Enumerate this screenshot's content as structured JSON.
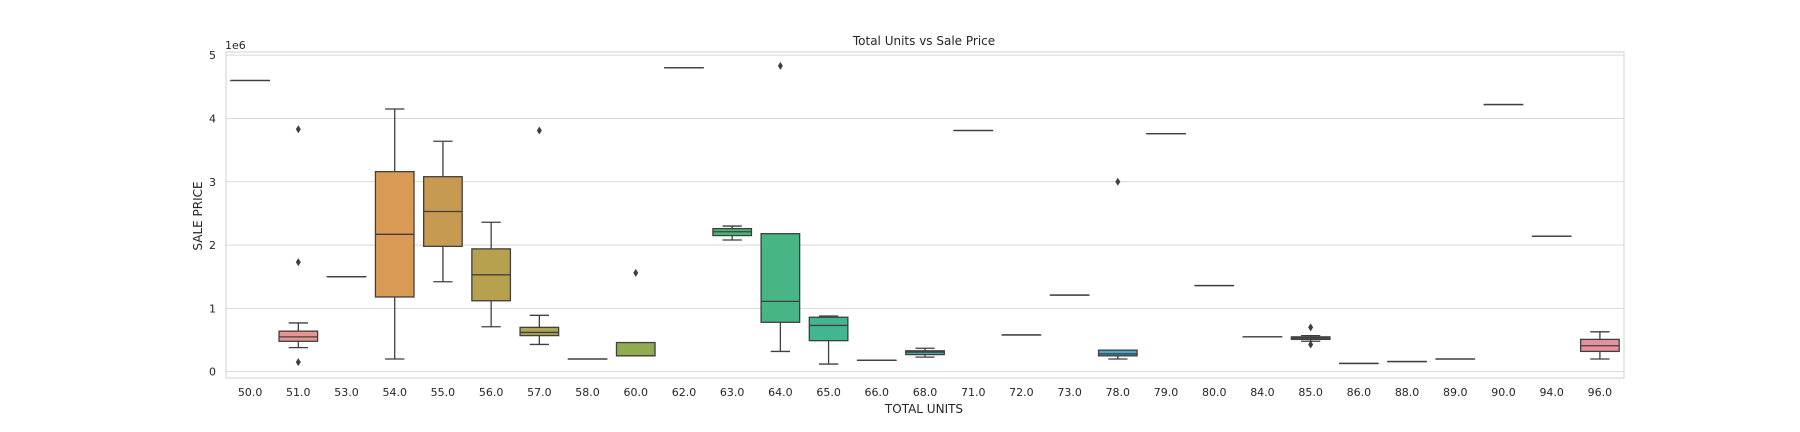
{
  "chart_data": {
    "type": "box",
    "title": "Total Units vs Sale Price",
    "xlabel": "TOTAL UNITS",
    "ylabel": "SALE PRICE",
    "y_offset_label": "1e6",
    "ylim": [
      -0.1,
      5.05
    ],
    "yticks": [
      0,
      1,
      2,
      3,
      4,
      5
    ],
    "ytick_labels": [
      "0",
      "1",
      "2",
      "3",
      "4",
      "5"
    ],
    "grid": true,
    "categories": [
      "50.0",
      "51.0",
      "53.0",
      "54.0",
      "55.0",
      "56.0",
      "57.0",
      "58.0",
      "60.0",
      "62.0",
      "63.0",
      "64.0",
      "65.0",
      "66.0",
      "68.0",
      "71.0",
      "72.0",
      "73.0",
      "78.0",
      "79.0",
      "80.0",
      "84.0",
      "85.0",
      "86.0",
      "88.0",
      "89.0",
      "90.0",
      "94.0",
      "96.0"
    ],
    "colors": [
      "#e8949a",
      "#e69590",
      "#e19b6e",
      "#d99a56",
      "#c69a50",
      "#b7a04e",
      "#aea751",
      "#a5aa54",
      "#8fac50",
      "#4fb461",
      "#49b67a",
      "#48b585",
      "#43b592",
      "#3fb49b",
      "#3cb4a4",
      "#3db2ae",
      "#3eb1b8",
      "#3fb0c3",
      "#45a9cf",
      "#5a9fd8",
      "#7a96e0",
      "#9a8de3",
      "#b287e4",
      "#c883e2",
      "#d880d4",
      "#e07fc6",
      "#e582b8",
      "#e88aa8",
      "#e8909b"
    ],
    "boxes": [
      {
        "q1": 4.6,
        "med": 4.6,
        "q3": 4.6,
        "wlo": 4.6,
        "whi": 4.6,
        "fliers": []
      },
      {
        "q1": 0.48,
        "med": 0.55,
        "q3": 0.64,
        "wlo": 0.38,
        "whi": 0.77,
        "fliers": [
          3.83,
          1.73,
          0.15
        ]
      },
      {
        "q1": 1.5,
        "med": 1.5,
        "q3": 1.5,
        "wlo": 1.5,
        "whi": 1.5,
        "fliers": []
      },
      {
        "q1": 1.18,
        "med": 2.17,
        "q3": 3.16,
        "wlo": 0.2,
        "whi": 4.15,
        "fliers": []
      },
      {
        "q1": 1.98,
        "med": 2.53,
        "q3": 3.08,
        "wlo": 1.42,
        "whi": 3.64,
        "fliers": []
      },
      {
        "q1": 1.12,
        "med": 1.53,
        "q3": 1.94,
        "wlo": 0.71,
        "whi": 2.36,
        "fliers": []
      },
      {
        "q1": 0.57,
        "med": 0.62,
        "q3": 0.7,
        "wlo": 0.43,
        "whi": 0.89,
        "fliers": [
          3.81
        ]
      },
      {
        "q1": 0.2,
        "med": 0.2,
        "q3": 0.2,
        "wlo": 0.2,
        "whi": 0.2,
        "fliers": []
      },
      {
        "q1": 0.25,
        "med": 0.25,
        "q3": 0.46,
        "wlo": 0.25,
        "whi": 0.46,
        "fliers": [
          1.56
        ]
      },
      {
        "q1": 4.8,
        "med": 4.8,
        "q3": 4.8,
        "wlo": 4.8,
        "whi": 4.8,
        "fliers": []
      },
      {
        "q1": 2.15,
        "med": 2.21,
        "q3": 2.26,
        "wlo": 2.08,
        "whi": 2.3,
        "fliers": []
      },
      {
        "q1": 0.78,
        "med": 1.11,
        "q3": 2.18,
        "wlo": 0.32,
        "whi": 2.18,
        "fliers": [
          4.83
        ]
      },
      {
        "q1": 0.49,
        "med": 0.73,
        "q3": 0.86,
        "wlo": 0.12,
        "whi": 0.88,
        "fliers": []
      },
      {
        "q1": 0.18,
        "med": 0.18,
        "q3": 0.18,
        "wlo": 0.18,
        "whi": 0.18,
        "fliers": []
      },
      {
        "q1": 0.27,
        "med": 0.31,
        "q3": 0.33,
        "wlo": 0.23,
        "whi": 0.37,
        "fliers": []
      },
      {
        "q1": 3.81,
        "med": 3.81,
        "q3": 3.81,
        "wlo": 3.81,
        "whi": 3.81,
        "fliers": []
      },
      {
        "q1": 0.58,
        "med": 0.58,
        "q3": 0.58,
        "wlo": 0.58,
        "whi": 0.58,
        "fliers": []
      },
      {
        "q1": 1.21,
        "med": 1.21,
        "q3": 1.21,
        "wlo": 1.21,
        "whi": 1.21,
        "fliers": []
      },
      {
        "q1": 0.25,
        "med": 0.28,
        "q3": 0.34,
        "wlo": 0.2,
        "whi": 0.34,
        "fliers": [
          3.0
        ]
      },
      {
        "q1": 3.76,
        "med": 3.76,
        "q3": 3.76,
        "wlo": 3.76,
        "whi": 3.76,
        "fliers": []
      },
      {
        "q1": 1.36,
        "med": 1.36,
        "q3": 1.36,
        "wlo": 1.36,
        "whi": 1.36,
        "fliers": []
      },
      {
        "q1": 0.55,
        "med": 0.55,
        "q3": 0.55,
        "wlo": 0.55,
        "whi": 0.55,
        "fliers": []
      },
      {
        "q1": 0.51,
        "med": 0.53,
        "q3": 0.55,
        "wlo": 0.48,
        "whi": 0.57,
        "fliers": [
          0.7,
          0.43
        ]
      },
      {
        "q1": 0.13,
        "med": 0.13,
        "q3": 0.13,
        "wlo": 0.13,
        "whi": 0.13,
        "fliers": []
      },
      {
        "q1": 0.16,
        "med": 0.16,
        "q3": 0.16,
        "wlo": 0.16,
        "whi": 0.16,
        "fliers": []
      },
      {
        "q1": 0.2,
        "med": 0.2,
        "q3": 0.2,
        "wlo": 0.2,
        "whi": 0.2,
        "fliers": []
      },
      {
        "q1": 4.22,
        "med": 4.22,
        "q3": 4.22,
        "wlo": 4.22,
        "whi": 4.22,
        "fliers": []
      },
      {
        "q1": 2.14,
        "med": 2.14,
        "q3": 2.14,
        "wlo": 2.14,
        "whi": 2.14,
        "fliers": []
      },
      {
        "q1": 0.32,
        "med": 0.41,
        "q3": 0.51,
        "wlo": 0.2,
        "whi": 0.63,
        "fliers": []
      }
    ]
  }
}
